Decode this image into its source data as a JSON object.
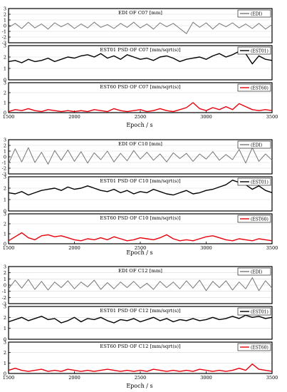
{
  "figure": {
    "x_label": "Epoch / s"
  },
  "chart_data": [
    {
      "type": "line",
      "group": "C07",
      "kind": "EDI",
      "title": "EDI OF C07 [mm]",
      "legend": "(EDI)",
      "color": "#777777",
      "ylim": [
        -3,
        3
      ],
      "yticks": [
        -3,
        -2,
        -1,
        0,
        1,
        2,
        3
      ],
      "xlim": [
        1500,
        3500
      ],
      "xticks": [],
      "xtick_labels": [],
      "series": [
        {
          "name": "(EDI)",
          "x": [
            1500,
            1550,
            1600,
            1650,
            1700,
            1750,
            1800,
            1850,
            1900,
            1950,
            2000,
            2050,
            2100,
            2150,
            2200,
            2250,
            2300,
            2350,
            2400,
            2450,
            2500,
            2550,
            2600,
            2650,
            2700,
            2750,
            2800,
            2850,
            2900,
            2950,
            3000,
            3050,
            3100,
            3150,
            3200,
            3250,
            3300,
            3350,
            3400,
            3450,
            3500
          ],
          "y": [
            -0.3,
            0.4,
            -0.5,
            0.6,
            -0.4,
            0.3,
            -0.6,
            0.5,
            -0.2,
            0.4,
            -0.5,
            0.3,
            -0.4,
            0.6,
            -0.3,
            0.2,
            -0.5,
            0.4,
            -0.3,
            0.6,
            -0.4,
            0.3,
            -0.6,
            0.5,
            -0.2,
            0.4,
            -0.5,
            -1.4,
            0.6,
            -0.3,
            0.5,
            -0.6,
            0.4,
            -0.2,
            0.5,
            -0.4,
            0.3,
            -0.5,
            0.4,
            -0.6,
            0.2
          ]
        }
      ]
    },
    {
      "type": "line",
      "group": "C07",
      "kind": "EST01",
      "title": "EST01 PSD OF C07 [mm/sqrt(s)]",
      "legend": "(EST01)",
      "color": "#000000",
      "ylim": [
        0,
        3
      ],
      "yticks": [
        0,
        1,
        2,
        3
      ],
      "xlim": [
        1500,
        3500
      ],
      "xticks": [],
      "xtick_labels": [],
      "series": [
        {
          "name": "(EST01)",
          "x": [
            1500,
            1550,
            1600,
            1650,
            1700,
            1750,
            1800,
            1850,
            1900,
            1950,
            2000,
            2050,
            2100,
            2150,
            2200,
            2250,
            2300,
            2350,
            2400,
            2450,
            2500,
            2550,
            2600,
            2650,
            2700,
            2750,
            2800,
            2850,
            2900,
            2950,
            3000,
            3050,
            3100,
            3150,
            3200,
            3250,
            3300,
            3350,
            3400,
            3450,
            3500
          ],
          "y": [
            1.6,
            1.7,
            1.5,
            1.8,
            1.6,
            1.7,
            1.9,
            1.6,
            1.8,
            2.0,
            1.9,
            2.1,
            2.2,
            2.0,
            2.3,
            1.9,
            2.1,
            1.8,
            2.2,
            2.0,
            1.8,
            1.9,
            1.7,
            2.0,
            2.1,
            1.9,
            1.6,
            1.8,
            1.9,
            2.0,
            1.8,
            2.1,
            2.3,
            2.0,
            2.2,
            2.5,
            2.3,
            1.4,
            2.1,
            1.8,
            1.7
          ]
        }
      ]
    },
    {
      "type": "line",
      "group": "C07",
      "kind": "EST60",
      "title": "EST60 PSD OF C07 [mm/sqrt(s)]",
      "legend": "(EST60)",
      "color": "#e8000b",
      "ylim": [
        0,
        3
      ],
      "yticks": [
        0,
        1,
        2,
        3
      ],
      "xlim": [
        1500,
        3500
      ],
      "xticks": [
        1500,
        2000,
        2500,
        3000,
        3500
      ],
      "xtick_labels": [
        "1500",
        "2000",
        "2500",
        "3000",
        "3500"
      ],
      "series": [
        {
          "name": "(EST60)",
          "x": [
            1500,
            1550,
            1600,
            1650,
            1700,
            1750,
            1800,
            1850,
            1900,
            1950,
            2000,
            2050,
            2100,
            2150,
            2200,
            2250,
            2300,
            2350,
            2400,
            2450,
            2500,
            2550,
            2600,
            2650,
            2700,
            2750,
            2800,
            2850,
            2900,
            2950,
            3000,
            3050,
            3100,
            3150,
            3200,
            3250,
            3300,
            3350,
            3400,
            3450,
            3500
          ],
          "y": [
            0.1,
            0.3,
            0.2,
            0.4,
            0.2,
            0.1,
            0.3,
            0.2,
            0.1,
            0.2,
            0.1,
            0.2,
            0.1,
            0.3,
            0.2,
            0.1,
            0.4,
            0.2,
            0.1,
            0.2,
            0.3,
            0.1,
            0.2,
            0.4,
            0.2,
            0.1,
            0.3,
            0.5,
            1.0,
            0.4,
            0.2,
            0.5,
            0.3,
            0.6,
            0.3,
            0.9,
            0.6,
            0.3,
            0.2,
            0.3,
            0.2
          ]
        }
      ]
    },
    {
      "type": "line",
      "group": "C10",
      "kind": "EDI",
      "title": "EDI OF C10 [mm]",
      "legend": "(EDI)",
      "color": "#777777",
      "ylim": [
        -3,
        3
      ],
      "yticks": [
        -3,
        -2,
        -1,
        0,
        1,
        2,
        3
      ],
      "xlim": [
        1500,
        3500
      ],
      "xticks": [],
      "xtick_labels": [],
      "series": [
        {
          "name": "(EDI)",
          "x": [
            1500,
            1550,
            1600,
            1650,
            1700,
            1750,
            1800,
            1850,
            1900,
            1950,
            2000,
            2050,
            2100,
            2150,
            2200,
            2250,
            2300,
            2350,
            2400,
            2450,
            2500,
            2550,
            2600,
            2650,
            2700,
            2750,
            2800,
            2850,
            2900,
            2950,
            3000,
            3050,
            3100,
            3150,
            3200,
            3250,
            3300,
            3350,
            3400,
            3450,
            3500
          ],
          "y": [
            -1.2,
            1.4,
            -0.9,
            1.6,
            -1.0,
            0.8,
            -1.3,
            1.1,
            -0.6,
            1.2,
            -0.8,
            0.9,
            -1.1,
            0.7,
            -0.5,
            1.0,
            -0.9,
            0.6,
            -0.7,
            1.1,
            -0.4,
            0.8,
            -0.6,
            0.5,
            -0.9,
            0.7,
            -0.3,
            0.6,
            -0.8,
            0.5,
            -0.4,
            0.9,
            -0.6,
            0.4,
            -0.5,
            1.3,
            -1.1,
            1.6,
            -0.8,
            0.5,
            -0.6
          ]
        }
      ]
    },
    {
      "type": "line",
      "group": "C10",
      "kind": "EST01",
      "title": "EST01 PSD OF C10 [mm/sqrt(s)]",
      "legend": "(EST01)",
      "color": "#000000",
      "ylim": [
        0,
        3
      ],
      "yticks": [
        0,
        1,
        2,
        3
      ],
      "xlim": [
        1500,
        3500
      ],
      "xticks": [],
      "xtick_labels": [],
      "series": [
        {
          "name": "(EST01)",
          "x": [
            1500,
            1550,
            1600,
            1650,
            1700,
            1750,
            1800,
            1850,
            1900,
            1950,
            2000,
            2050,
            2100,
            2150,
            2200,
            2250,
            2300,
            2350,
            2400,
            2450,
            2500,
            2550,
            2600,
            2650,
            2700,
            2750,
            2800,
            2850,
            2900,
            2950,
            3000,
            3050,
            3100,
            3150,
            3200,
            3250,
            3300,
            3350,
            3400,
            3450,
            3500
          ],
          "y": [
            1.6,
            1.5,
            1.7,
            1.4,
            1.6,
            1.8,
            1.9,
            2.0,
            1.8,
            2.1,
            1.9,
            2.0,
            2.2,
            2.0,
            1.8,
            1.7,
            1.9,
            1.6,
            1.8,
            1.5,
            1.7,
            1.6,
            1.9,
            1.7,
            1.5,
            1.4,
            1.6,
            1.8,
            1.5,
            1.6,
            1.8,
            1.9,
            2.1,
            2.3,
            2.7,
            2.5,
            2.3,
            1.9,
            2.2,
            1.8,
            1.6
          ]
        }
      ]
    },
    {
      "type": "line",
      "group": "C10",
      "kind": "EST60",
      "title": "EST60 PSD OF C10 [mm/sqrt(s)]",
      "legend": "(EST60)",
      "color": "#e8000b",
      "ylim": [
        0,
        3
      ],
      "yticks": [
        0,
        1,
        2,
        3
      ],
      "xlim": [
        1500,
        3500
      ],
      "xticks": [
        1500,
        2000,
        2500,
        3000,
        3500
      ],
      "xtick_labels": [
        "1500",
        "2000",
        "2500",
        "3000",
        "3500"
      ],
      "series": [
        {
          "name": "(EST60)",
          "x": [
            1500,
            1550,
            1600,
            1650,
            1700,
            1750,
            1800,
            1850,
            1900,
            1950,
            2000,
            2050,
            2100,
            2150,
            2200,
            2250,
            2300,
            2350,
            2400,
            2450,
            2500,
            2550,
            2600,
            2650,
            2700,
            2750,
            2800,
            2850,
            2900,
            2950,
            3000,
            3050,
            3100,
            3150,
            3200,
            3250,
            3300,
            3350,
            3400,
            3450,
            3500
          ],
          "y": [
            0.3,
            0.7,
            1.1,
            0.6,
            0.4,
            0.8,
            0.9,
            0.7,
            0.8,
            0.6,
            0.4,
            0.3,
            0.5,
            0.4,
            0.6,
            0.4,
            0.7,
            0.5,
            0.3,
            0.4,
            0.6,
            0.5,
            0.4,
            0.6,
            0.9,
            0.5,
            0.3,
            0.4,
            0.3,
            0.5,
            0.7,
            0.8,
            0.6,
            0.4,
            0.3,
            0.5,
            0.4,
            0.3,
            0.5,
            0.4,
            0.3
          ]
        }
      ]
    },
    {
      "type": "line",
      "group": "C12",
      "kind": "EDI",
      "title": "EDI OF C12 [mm]",
      "legend": "(EDI)",
      "color": "#777777",
      "ylim": [
        -3,
        3
      ],
      "yticks": [
        -3,
        -2,
        -1,
        0,
        1,
        2,
        3
      ],
      "xlim": [
        1500,
        3500
      ],
      "xticks": [],
      "xtick_labels": [],
      "series": [
        {
          "name": "(EDI)",
          "x": [
            1500,
            1550,
            1600,
            1650,
            1700,
            1750,
            1800,
            1850,
            1900,
            1950,
            2000,
            2050,
            2100,
            2150,
            2200,
            2250,
            2300,
            2350,
            2400,
            2450,
            2500,
            2550,
            2600,
            2650,
            2700,
            2750,
            2800,
            2850,
            2900,
            2950,
            3000,
            3050,
            3100,
            3150,
            3200,
            3250,
            3300,
            3350,
            3400,
            3450,
            3500
          ],
          "y": [
            -0.6,
            0.8,
            -0.5,
            0.9,
            -0.7,
            0.6,
            -0.8,
            0.5,
            -0.4,
            0.7,
            -0.6,
            0.5,
            -0.3,
            0.8,
            -0.7,
            0.4,
            -0.6,
            0.5,
            -0.4,
            0.6,
            -0.5,
            0.3,
            -0.7,
            0.6,
            -0.4,
            0.5,
            -0.6,
            0.7,
            -0.5,
            0.8,
            -0.9,
            0.6,
            -0.4,
            0.7,
            -0.8,
            0.5,
            -0.6,
            1.2,
            -0.9,
            0.7,
            -0.5
          ]
        }
      ]
    },
    {
      "type": "line",
      "group": "C12",
      "kind": "EST01",
      "title": "EST01 PSD OF C12 [mm/sqrt(s)]",
      "legend": "(EST01)",
      "color": "#000000",
      "ylim": [
        0,
        3
      ],
      "yticks": [
        0,
        1,
        2,
        3
      ],
      "xlim": [
        1500,
        3500
      ],
      "xticks": [],
      "xtick_labels": [],
      "series": [
        {
          "name": "(EST01)",
          "x": [
            1500,
            1550,
            1600,
            1650,
            1700,
            1750,
            1800,
            1850,
            1900,
            1950,
            2000,
            2050,
            2100,
            2150,
            2200,
            2250,
            2300,
            2350,
            2400,
            2450,
            2500,
            2550,
            2600,
            2650,
            2700,
            2750,
            2800,
            2850,
            2900,
            2950,
            3000,
            3050,
            3100,
            3150,
            3200,
            3250,
            3300,
            3350,
            3400,
            3450,
            3500
          ],
          "y": [
            1.6,
            1.8,
            2.0,
            1.7,
            1.9,
            2.1,
            1.8,
            1.9,
            1.5,
            1.7,
            2.0,
            1.6,
            1.9,
            1.8,
            2.0,
            1.7,
            1.5,
            1.8,
            1.7,
            1.9,
            1.6,
            1.8,
            2.0,
            1.7,
            1.9,
            1.6,
            1.8,
            1.7,
            1.9,
            1.7,
            1.8,
            2.0,
            1.8,
            1.9,
            2.1,
            1.9,
            2.2,
            2.0,
            2.1,
            1.9,
            2.0
          ]
        }
      ]
    },
    {
      "type": "line",
      "group": "C12",
      "kind": "EST60",
      "title": "EST60 PSD OF C12 [mm/sqrt(s)]",
      "legend": "(EST60)",
      "color": "#e8000b",
      "ylim": [
        0,
        3
      ],
      "yticks": [
        0,
        1,
        2,
        3
      ],
      "xlim": [
        1500,
        3500
      ],
      "xticks": [
        1500,
        2000,
        2500,
        3000,
        3500
      ],
      "xtick_labels": [
        "1500",
        "2000",
        "2500",
        "3000",
        "3500"
      ],
      "series": [
        {
          "name": "(EST60)",
          "x": [
            1500,
            1550,
            1600,
            1650,
            1700,
            1750,
            1800,
            1850,
            1900,
            1950,
            2000,
            2050,
            2100,
            2150,
            2200,
            2250,
            2300,
            2350,
            2400,
            2450,
            2500,
            2550,
            2600,
            2650,
            2700,
            2750,
            2800,
            2850,
            2900,
            2950,
            3000,
            3050,
            3100,
            3150,
            3200,
            3250,
            3300,
            3350,
            3400,
            3450,
            3500
          ],
          "y": [
            0.3,
            0.5,
            0.3,
            0.2,
            0.3,
            0.4,
            0.2,
            0.3,
            0.2,
            0.4,
            0.3,
            0.2,
            0.3,
            0.2,
            0.3,
            0.4,
            0.3,
            0.2,
            0.3,
            0.2,
            0.3,
            0.2,
            0.4,
            0.3,
            0.2,
            0.3,
            0.2,
            0.3,
            0.2,
            0.4,
            0.3,
            0.2,
            0.3,
            0.2,
            0.3,
            0.5,
            0.3,
            0.9,
            0.4,
            0.3,
            0.2
          ]
        }
      ]
    }
  ]
}
